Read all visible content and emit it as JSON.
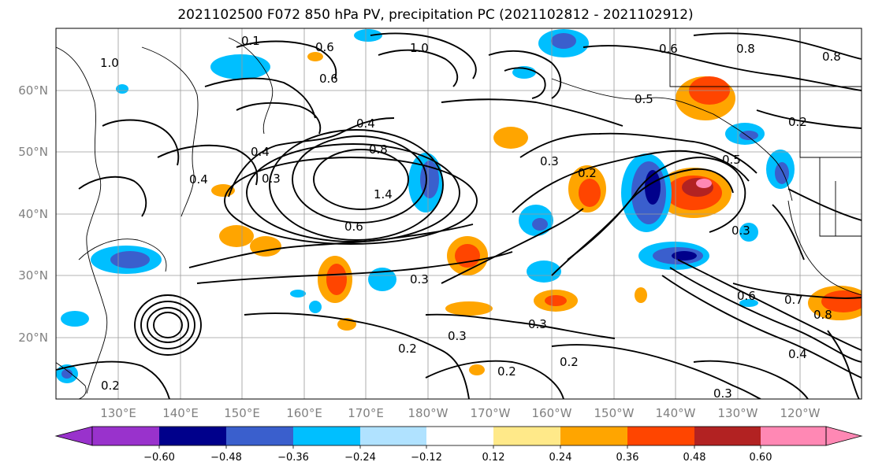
{
  "title": "2021102500 F072 850 hPa PV, precipitation PC (2021102812 - 2021102912)",
  "map": {
    "lat_labels": [
      "60°N",
      "50°N",
      "40°N",
      "30°N",
      "20°N"
    ],
    "lon_labels": [
      "130°E",
      "140°E",
      "150°E",
      "160°E",
      "170°E",
      "180°W",
      "170°W",
      "160°W",
      "150°W",
      "140°W",
      "130°W",
      "120°W"
    ],
    "contour_labels": [
      "0.1",
      "0.6",
      "1.0",
      "0.6",
      "0.4",
      "0.4",
      "0.3",
      "0.8",
      "1.4",
      "0.6",
      "0.3",
      "0.3",
      "0.2",
      "0.5",
      "0.6",
      "0.8",
      "0.8",
      "0.2",
      "0.3",
      "0.5",
      "0.7",
      "0.8",
      "0.4",
      "0.2",
      "0.2",
      "0.3",
      "0.2",
      "0.4",
      "0.3",
      "0.2",
      "0.6",
      "1.0",
      "0.3"
    ]
  },
  "colorbar": {
    "tick_labels": [
      "−0.60",
      "−0.48",
      "−0.36",
      "−0.24",
      "−0.12",
      "0.12",
      "0.24",
      "0.36",
      "0.48",
      "0.60"
    ],
    "colors": [
      "#9932cc",
      "#00008b",
      "#3a5fcd",
      "#00bfff",
      "#b0e2ff",
      "#ffffff",
      "#ffe989",
      "#ffa500",
      "#ff4500",
      "#b22222",
      "#ff88b4"
    ]
  }
}
